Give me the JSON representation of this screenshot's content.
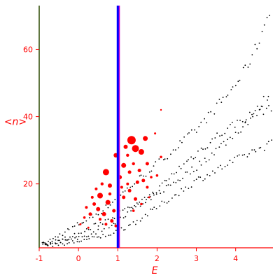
{
  "chart_data": {
    "type": "scatter",
    "title": "",
    "xlabel": "E",
    "ylabel": "<n>",
    "xlim": [
      -1.0,
      4.95
    ],
    "ylim": [
      1.0,
      73.0
    ],
    "xticks": [
      -1,
      0,
      1,
      2,
      3,
      4
    ],
    "xtick_labels": [
      "-1",
      "0",
      "1",
      "2",
      "3",
      "4"
    ],
    "yticks": [
      20,
      40,
      60
    ],
    "ytick_labels": [
      "20",
      "40",
      "60"
    ],
    "grid": false,
    "vertical_line": {
      "x": 1.0
    },
    "colors": {
      "axis_text": "#ff0000",
      "left_axis": "#2b4a00",
      "vline_main": "#0000ff",
      "vline_edge": "#cc00cc",
      "black_points": "#000000",
      "red_points": "#ff0000"
    },
    "series": [
      {
        "marker": "small-dot",
        "color": "#000000",
        "bands": [
          {
            "points": [
              [
                -0.9,
                2
              ],
              [
                -0.6,
                4
              ],
              [
                -0.3,
                6
              ],
              [
                0.0,
                8
              ],
              [
                0.3,
                10
              ],
              [
                0.6,
                12
              ],
              [
                0.9,
                15
              ],
              [
                1.2,
                18
              ],
              [
                1.5,
                21
              ],
              [
                1.8,
                24
              ],
              [
                2.1,
                27
              ],
              [
                2.4,
                30
              ],
              [
                2.7,
                33
              ],
              [
                3.0,
                36
              ],
              [
                3.3,
                40
              ],
              [
                3.6,
                44
              ],
              [
                3.9,
                48
              ],
              [
                4.2,
                53
              ],
              [
                4.5,
                60
              ],
              [
                4.7,
                66
              ],
              [
                4.85,
                72
              ]
            ]
          },
          {
            "points": [
              [
                -0.9,
                2
              ],
              [
                -0.5,
                3
              ],
              [
                0.0,
                5
              ],
              [
                0.5,
                8
              ],
              [
                1.0,
                11
              ],
              [
                1.5,
                14
              ],
              [
                2.0,
                17
              ],
              [
                2.5,
                21
              ],
              [
                3.0,
                25
              ],
              [
                3.5,
                30
              ],
              [
                4.0,
                35
              ],
              [
                4.5,
                41
              ],
              [
                4.85,
                47
              ]
            ]
          },
          {
            "points": [
              [
                -0.9,
                2
              ],
              [
                -0.5,
                3
              ],
              [
                0.0,
                4
              ],
              [
                0.5,
                6
              ],
              [
                1.0,
                9
              ],
              [
                1.5,
                13
              ],
              [
                2.0,
                18
              ],
              [
                2.5,
                24
              ],
              [
                3.0,
                29
              ],
              [
                3.5,
                34
              ],
              [
                4.0,
                38
              ],
              [
                4.5,
                41
              ],
              [
                4.9,
                43
              ]
            ]
          },
          {
            "points": [
              [
                -0.9,
                2
              ],
              [
                -0.4,
                2
              ],
              [
                0.0,
                3
              ],
              [
                0.5,
                4
              ],
              [
                1.0,
                6
              ],
              [
                1.5,
                9
              ],
              [
                2.0,
                13
              ],
              [
                2.5,
                17
              ],
              [
                3.0,
                21
              ],
              [
                3.5,
                24
              ],
              [
                4.0,
                27
              ],
              [
                4.5,
                30
              ],
              [
                4.9,
                32
              ]
            ]
          }
        ]
      },
      {
        "marker": "scaled-circle",
        "color": "#ff0000",
        "points": [
          {
            "x": 1.35,
            "y": 33,
            "r": 6
          },
          {
            "x": 1.45,
            "y": 30.5,
            "r": 5
          },
          {
            "x": 1.6,
            "y": 29.5,
            "r": 4
          },
          {
            "x": 1.7,
            "y": 33.5,
            "r": 3.5
          },
          {
            "x": 1.2,
            "y": 31,
            "r": 3
          },
          {
            "x": 0.95,
            "y": 28.5,
            "r": 3.2
          },
          {
            "x": 0.7,
            "y": 23.5,
            "r": 4.5
          },
          {
            "x": 1.15,
            "y": 25.5,
            "r": 3.5
          },
          {
            "x": 1.05,
            "y": 22,
            "r": 3
          },
          {
            "x": 0.8,
            "y": 19.5,
            "r": 3
          },
          {
            "x": 1.3,
            "y": 23.5,
            "r": 2.5
          },
          {
            "x": 1.55,
            "y": 24,
            "r": 2.5
          },
          {
            "x": 1.75,
            "y": 26,
            "r": 2.5
          },
          {
            "x": 1.5,
            "y": 20.5,
            "r": 2.5
          },
          {
            "x": 1.65,
            "y": 21,
            "r": 2.5
          },
          {
            "x": 0.55,
            "y": 16.5,
            "r": 4
          },
          {
            "x": 0.75,
            "y": 14.5,
            "r": 3.5
          },
          {
            "x": 0.5,
            "y": 12.5,
            "r": 3
          },
          {
            "x": 0.65,
            "y": 11,
            "r": 3
          },
          {
            "x": 0.9,
            "y": 12,
            "r": 2.5
          },
          {
            "x": 0.4,
            "y": 14,
            "r": 2.5
          },
          {
            "x": 0.3,
            "y": 11,
            "r": 2.5
          },
          {
            "x": 0.85,
            "y": 9,
            "r": 2.5
          },
          {
            "x": 1.15,
            "y": 16,
            "r": 2.5
          },
          {
            "x": 1.3,
            "y": 18,
            "r": 2.5
          },
          {
            "x": 1.45,
            "y": 15.5,
            "r": 2.5
          },
          {
            "x": 0.6,
            "y": 20,
            "r": 2.2
          },
          {
            "x": 0.45,
            "y": 18.5,
            "r": 2
          },
          {
            "x": 0.2,
            "y": 13,
            "r": 2
          },
          {
            "x": 0.35,
            "y": 16,
            "r": 2
          },
          {
            "x": 0.7,
            "y": 8,
            "r": 2
          },
          {
            "x": 0.95,
            "y": 7.5,
            "r": 2
          },
          {
            "x": 1.25,
            "y": 20,
            "r": 2
          },
          {
            "x": 1.75,
            "y": 19,
            "r": 2
          },
          {
            "x": 1.85,
            "y": 22,
            "r": 1.8
          },
          {
            "x": 2.0,
            "y": 22.5,
            "r": 1.8
          },
          {
            "x": 2.1,
            "y": 28,
            "r": 1.8
          },
          {
            "x": 1.95,
            "y": 35,
            "r": 1.5
          },
          {
            "x": 2.1,
            "y": 42,
            "r": 1.2
          },
          {
            "x": 0.15,
            "y": 10,
            "r": 1.8
          },
          {
            "x": 0.05,
            "y": 8,
            "r": 1.5
          },
          {
            "x": 0.25,
            "y": 7,
            "r": 1.5
          },
          {
            "x": 1.4,
            "y": 12,
            "r": 1.8
          },
          {
            "x": 1.6,
            "y": 14,
            "r": 1.8
          },
          {
            "x": 1.8,
            "y": 16,
            "r": 1.5
          },
          {
            "x": 0.8,
            "y": 17,
            "r": 2.2
          },
          {
            "x": 1.1,
            "y": 19,
            "r": 2
          },
          {
            "x": 1.4,
            "y": 26,
            "r": 2.2
          },
          {
            "x": 1.25,
            "y": 28.5,
            "r": 2.2
          },
          {
            "x": 0.55,
            "y": 9.5,
            "r": 2
          }
        ]
      }
    ]
  }
}
